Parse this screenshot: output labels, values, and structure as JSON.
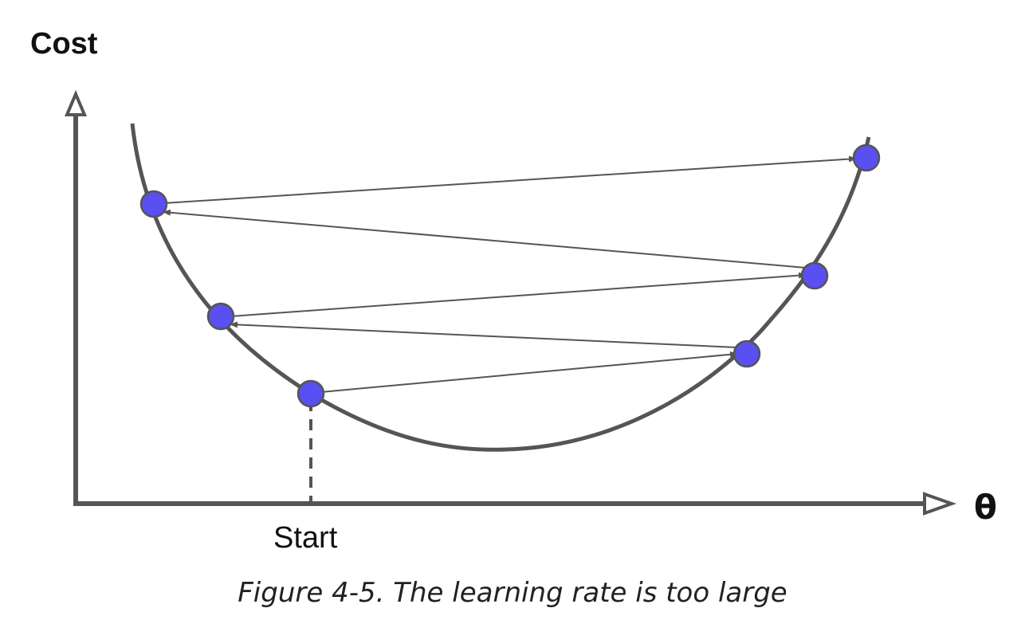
{
  "y_axis_label": "Cost",
  "x_axis_label": "θ",
  "start_label": "Start",
  "caption": "Figure 4-5. The learning rate is too large",
  "colors": {
    "axis": "#555555",
    "curve": "#555555",
    "point_fill": "#5a4ff0",
    "arrow": "#555555"
  }
}
